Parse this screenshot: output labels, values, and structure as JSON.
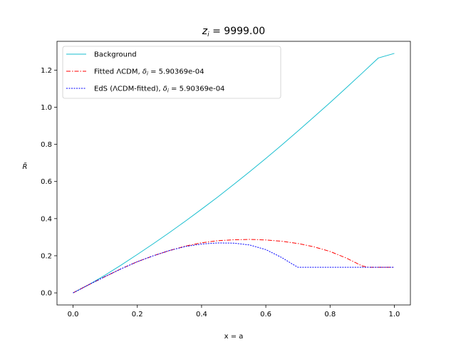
{
  "chart_data": {
    "type": "line",
    "title": "z_i = 9999.00",
    "title_parts": {
      "symbol": "z",
      "sub": "i",
      "rest": " =  9999.00"
    },
    "xlabel": "x = a",
    "ylabel": "R̃",
    "xlim": [
      -0.05,
      1.05
    ],
    "ylim": [
      -0.065,
      1.355
    ],
    "xticks": [
      0.0,
      0.2,
      0.4,
      0.6,
      0.8,
      1.0
    ],
    "xtick_labels": [
      "0.0",
      "0.2",
      "0.4",
      "0.6",
      "0.8",
      "1.0"
    ],
    "yticks": [
      0.0,
      0.2,
      0.4,
      0.6,
      0.8,
      1.0,
      1.2
    ],
    "ytick_labels": [
      "0.0",
      "0.2",
      "0.4",
      "0.6",
      "0.8",
      "1.0",
      "1.2"
    ],
    "grid": false,
    "legend_placement": "upper-left",
    "series": [
      {
        "name": "Background",
        "legend": {
          "pre": "Background",
          "sym": "",
          "sub": "",
          "post": ""
        },
        "color": "#17becf",
        "dash": "solid",
        "x": [
          0.0,
          0.05,
          0.1,
          0.15,
          0.2,
          0.25,
          0.3,
          0.35,
          0.4,
          0.45,
          0.5,
          0.55,
          0.6,
          0.65,
          0.7,
          0.75,
          0.8,
          0.85,
          0.9,
          0.95,
          1.0
        ],
        "y": [
          0.0,
          0.045,
          0.096,
          0.15,
          0.207,
          0.265,
          0.325,
          0.387,
          0.451,
          0.516,
          0.584,
          0.653,
          0.724,
          0.797,
          0.872,
          0.948,
          1.025,
          1.104,
          1.184,
          1.265,
          1.29
        ]
      },
      {
        "name": "Fitted ΛCDM, δ_i = 5.90369e-04",
        "legend": {
          "pre": "Fitted ΛCDM, ",
          "sym": "δ",
          "sub": "i",
          "post": " =  5.90369e-04"
        },
        "color": "#ff0000",
        "dash": "dashdot",
        "x": [
          0.0,
          0.05,
          0.1,
          0.15,
          0.2,
          0.25,
          0.3,
          0.35,
          0.4,
          0.45,
          0.5,
          0.55,
          0.6,
          0.65,
          0.7,
          0.75,
          0.8,
          0.85,
          0.9,
          0.92,
          0.95,
          1.0
        ],
        "y": [
          0.0,
          0.045,
          0.088,
          0.13,
          0.168,
          0.2,
          0.228,
          0.252,
          0.27,
          0.281,
          0.286,
          0.288,
          0.285,
          0.278,
          0.266,
          0.248,
          0.223,
          0.188,
          0.145,
          0.138,
          0.138,
          0.138
        ]
      },
      {
        "name": "EdS (ΛCDM-fitted), δ_i = 5.90369e-04",
        "legend": {
          "pre": "EdS (ΛCDM-fitted), ",
          "sym": "δ",
          "sub": "i",
          "post": " =  5.90369e-04"
        },
        "color": "#0000ff",
        "dash": "dotted",
        "x": [
          0.0,
          0.05,
          0.1,
          0.15,
          0.2,
          0.25,
          0.3,
          0.35,
          0.4,
          0.45,
          0.5,
          0.55,
          0.6,
          0.65,
          0.68,
          0.7,
          0.75,
          0.8,
          0.9,
          1.0
        ],
        "y": [
          0.0,
          0.045,
          0.088,
          0.13,
          0.168,
          0.2,
          0.228,
          0.25,
          0.263,
          0.269,
          0.268,
          0.258,
          0.233,
          0.19,
          0.158,
          0.138,
          0.138,
          0.138,
          0.138,
          0.138
        ]
      }
    ]
  }
}
